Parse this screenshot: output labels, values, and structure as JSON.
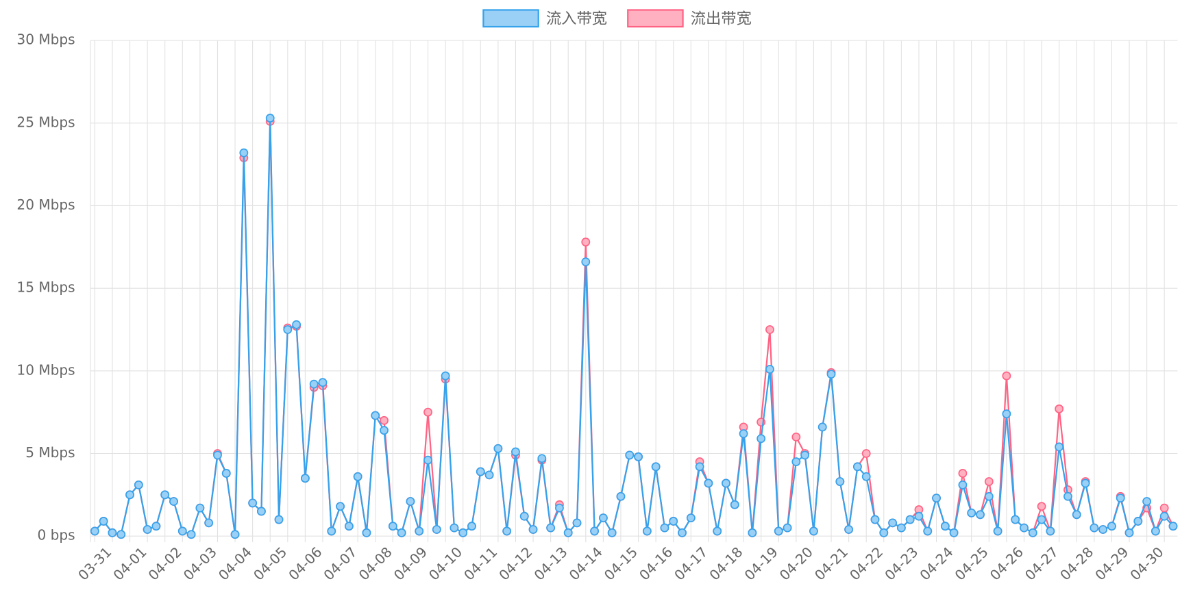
{
  "chart_data": {
    "type": "line",
    "categories": [
      null,
      null,
      "03-31",
      null,
      null,
      null,
      "04-01",
      null,
      null,
      null,
      "04-02",
      null,
      null,
      null,
      "04-03",
      null,
      null,
      null,
      "04-04",
      null,
      null,
      null,
      "04-05",
      null,
      null,
      null,
      "04-06",
      null,
      null,
      null,
      "04-07",
      null,
      null,
      null,
      "04-08",
      null,
      null,
      null,
      "04-09",
      null,
      null,
      null,
      "04-10",
      null,
      null,
      null,
      "04-11",
      null,
      null,
      null,
      "04-12",
      null,
      null,
      null,
      "04-13",
      null,
      null,
      null,
      "04-14",
      null,
      null,
      null,
      "04-15",
      null,
      null,
      null,
      "04-16",
      null,
      null,
      null,
      "04-17",
      null,
      null,
      null,
      "04-18",
      null,
      null,
      null,
      "04-19",
      null,
      null,
      null,
      "04-20",
      null,
      null,
      null,
      "04-21",
      null,
      null,
      null,
      "04-22",
      null,
      null,
      null,
      "04-23",
      null,
      null,
      null,
      "04-24",
      null,
      null,
      null,
      "04-25",
      null,
      null,
      null,
      "04-26",
      null,
      null,
      null,
      "04-27",
      null,
      null,
      null,
      "04-28",
      null,
      null,
      null,
      "04-29",
      null,
      null,
      null,
      "04-30",
      null
    ],
    "series": [
      {
        "name": "流入带宽",
        "color": "#36a2eb",
        "fill": "#9ad0f5",
        "values": [
          0.3,
          0.9,
          0.2,
          0.1,
          2.5,
          3.1,
          0.4,
          0.6,
          2.5,
          2.1,
          0.3,
          0.1,
          1.7,
          0.8,
          4.9,
          3.8,
          0.1,
          23.2,
          2.0,
          1.5,
          25.3,
          1.0,
          12.5,
          12.8,
          3.5,
          9.2,
          9.3,
          0.3,
          1.8,
          0.6,
          3.6,
          0.2,
          7.3,
          6.4,
          0.6,
          0.2,
          2.1,
          0.3,
          4.6,
          0.4,
          9.7,
          0.5,
          0.2,
          0.6,
          3.9,
          3.7,
          5.3,
          0.3,
          5.1,
          1.2,
          0.4,
          4.7,
          0.5,
          1.7,
          0.2,
          0.8,
          16.6,
          0.3,
          1.1,
          0.2,
          2.4,
          4.9,
          4.8,
          0.3,
          4.2,
          0.5,
          0.9,
          0.2,
          1.1,
          4.2,
          3.2,
          0.3,
          3.2,
          1.9,
          6.2,
          0.2,
          5.9,
          10.1,
          0.3,
          0.5,
          4.5,
          4.9,
          0.3,
          6.6,
          9.8,
          3.3,
          0.4,
          4.2,
          3.6,
          1.0,
          0.2,
          0.8,
          0.5,
          1.0,
          1.2,
          0.3,
          2.3,
          0.6,
          0.2,
          3.1,
          1.4,
          1.3,
          2.4,
          0.3,
          7.4,
          1.0,
          0.5,
          0.2,
          1.0,
          0.3,
          5.4,
          2.4,
          1.3,
          3.2,
          0.5,
          0.4,
          0.6,
          2.3,
          0.2,
          0.9,
          2.1,
          0.3,
          1.2,
          0.6
        ]
      },
      {
        "name": "流出带宽",
        "color": "#ff6384",
        "fill": "#ffb1c1",
        "values": [
          0.3,
          0.9,
          0.2,
          0.1,
          2.5,
          3.1,
          0.4,
          0.6,
          2.5,
          2.1,
          0.3,
          0.1,
          1.7,
          0.8,
          5.0,
          3.8,
          0.1,
          22.9,
          2.0,
          1.5,
          25.1,
          1.0,
          12.6,
          12.7,
          3.5,
          9.0,
          9.1,
          0.3,
          1.8,
          0.6,
          3.6,
          0.2,
          7.3,
          7.0,
          0.6,
          0.2,
          2.1,
          0.3,
          7.5,
          0.4,
          9.5,
          0.5,
          0.2,
          0.6,
          3.9,
          3.7,
          5.3,
          0.3,
          4.9,
          1.2,
          0.4,
          4.6,
          0.5,
          1.9,
          0.2,
          0.8,
          17.8,
          0.3,
          1.1,
          0.2,
          2.4,
          4.9,
          4.8,
          0.3,
          4.2,
          0.5,
          0.9,
          0.2,
          1.1,
          4.5,
          3.2,
          0.3,
          3.2,
          1.9,
          6.6,
          0.2,
          6.9,
          12.5,
          0.3,
          0.5,
          6.0,
          5.0,
          0.3,
          6.6,
          9.9,
          3.3,
          0.4,
          4.2,
          5.0,
          1.0,
          0.2,
          0.8,
          0.5,
          1.0,
          1.6,
          0.3,
          2.3,
          0.6,
          0.2,
          3.8,
          1.4,
          1.3,
          3.3,
          0.3,
          9.7,
          1.0,
          0.5,
          0.2,
          1.8,
          0.3,
          7.7,
          2.8,
          1.3,
          3.3,
          0.5,
          0.4,
          0.6,
          2.4,
          0.2,
          0.9,
          1.7,
          0.3,
          1.7,
          0.6
        ]
      }
    ],
    "ylim": [
      0,
      30
    ],
    "yticks": [
      {
        "value": 0,
        "label": "0 bps"
      },
      {
        "value": 5,
        "label": "5 Mbps"
      },
      {
        "value": 10,
        "label": "10 Mbps"
      },
      {
        "value": 15,
        "label": "15 Mbps"
      },
      {
        "value": 20,
        "label": "20 Mbps"
      },
      {
        "value": 25,
        "label": "25 Mbps"
      },
      {
        "value": 30,
        "label": "30 Mbps"
      }
    ],
    "grid": true,
    "legend": "top"
  }
}
